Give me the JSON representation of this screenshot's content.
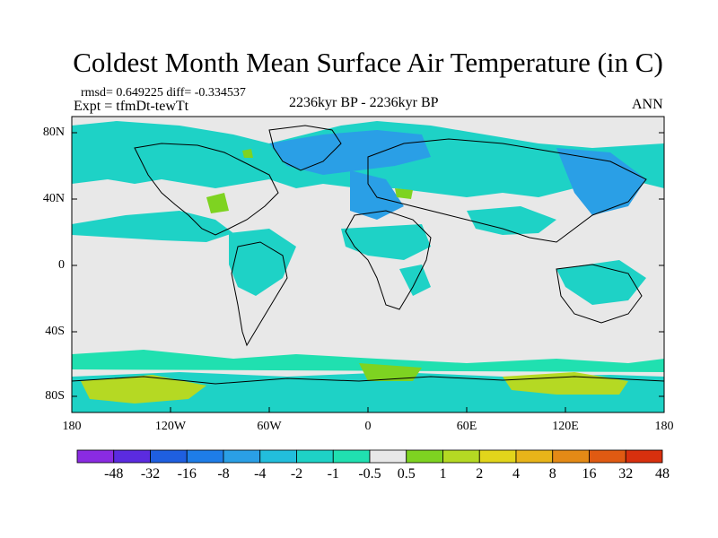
{
  "title": "Coldest Month Mean Surface Air Temperature (in C)",
  "stats": "rmsd= 0.649225  diff= -0.334537",
  "experiment": "Expt = tfmDt-tewTt",
  "period": "2236kyr BP - 2236kyr BP",
  "season": "ANN",
  "y_ticks": [
    "80N",
    "40N",
    "0",
    "40S",
    "80S"
  ],
  "x_ticks": [
    "180",
    "120W",
    "60W",
    "0",
    "60E",
    "120E",
    "180"
  ],
  "colorbar": {
    "labels": [
      "-48",
      "-32",
      "-16",
      "-8",
      "-4",
      "-2",
      "-1",
      "-0.5",
      "0.5",
      "1",
      "2",
      "4",
      "8",
      "16",
      "32",
      "48"
    ],
    "colors": [
      "#8a2be2",
      "#5b2be0",
      "#1f5fe0",
      "#1e7de8",
      "#2a9fe6",
      "#22bedc",
      "#1ed2c6",
      "#20e0b0",
      "#e8e8e8",
      "#7ed321",
      "#b5d923",
      "#e2d51b",
      "#e8b419",
      "#e48a16",
      "#e05a12",
      "#d8300e"
    ]
  },
  "colors": {
    "land_outline": "#000000",
    "background_neutral": "#e8e8e8",
    "teal": "#1ed2c6",
    "light_teal": "#20e0b0",
    "blue": "#2a9fe6",
    "green": "#7ed321"
  }
}
